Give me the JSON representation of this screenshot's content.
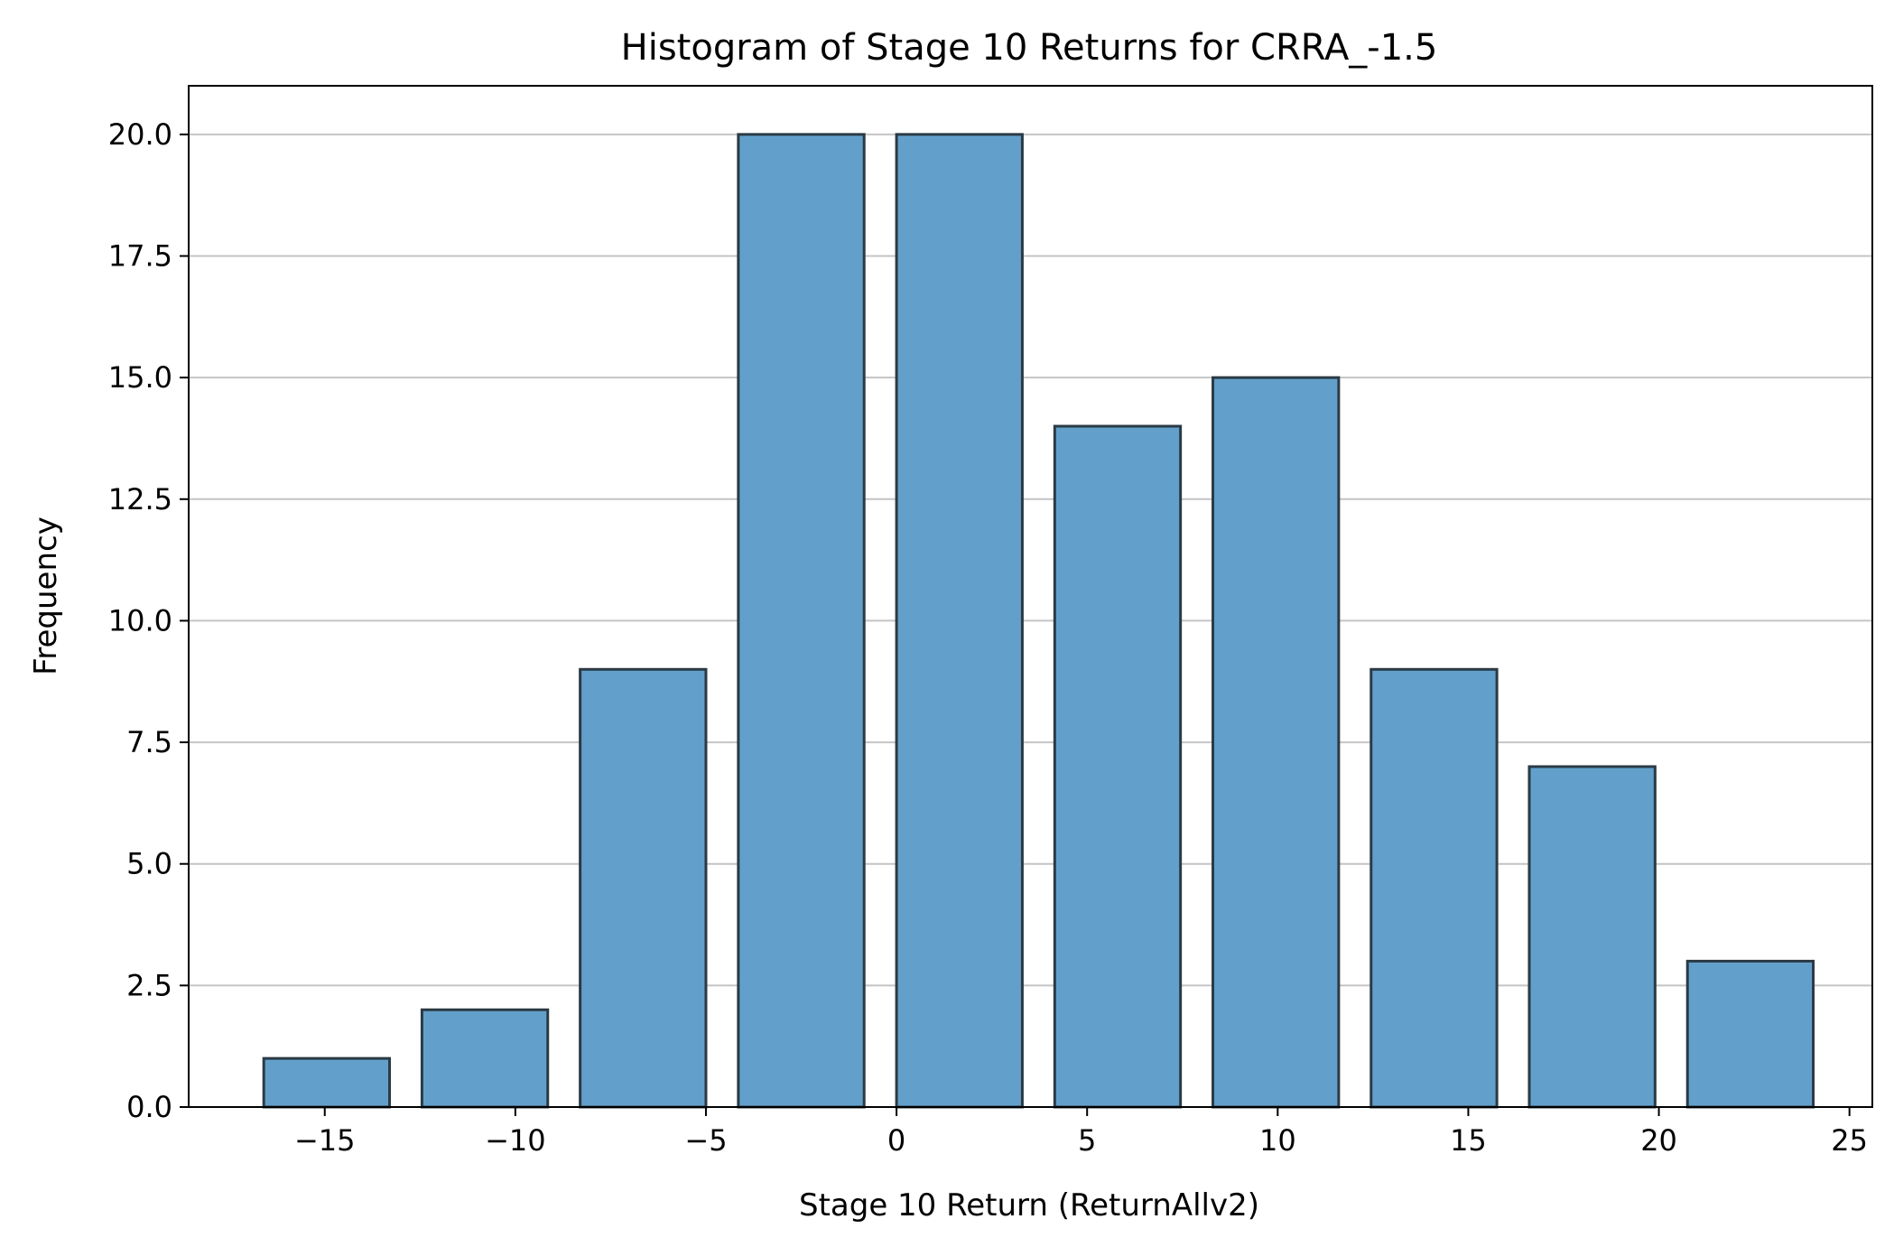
{
  "chart_data": {
    "type": "bar",
    "title": "Histogram of Stage 10 Returns for CRRA_-1.5",
    "xlabel": "Stage 10 Return (ReturnAllv2)",
    "ylabel": "Frequency",
    "xlim": [
      -18.57,
      25.6
    ],
    "ylim": [
      0,
      21
    ],
    "x_ticks": [
      -15,
      -10,
      -5,
      0,
      5,
      10,
      15,
      20,
      25
    ],
    "x_tick_labels": [
      "−15",
      "−10",
      "−5",
      "0",
      "5",
      "10",
      "15",
      "20",
      "25"
    ],
    "y_ticks": [
      0,
      2.5,
      5,
      7.5,
      10,
      12.5,
      15,
      17.5,
      20
    ],
    "y_tick_labels": [
      "0.0",
      "2.5",
      "5.0",
      "7.5",
      "10.0",
      "12.5",
      "15.0",
      "17.5",
      "20.0"
    ],
    "grid": "y-axis",
    "bins": [
      {
        "x0": -16.6,
        "x1": -13.3,
        "value": 1
      },
      {
        "x0": -12.45,
        "x1": -9.15,
        "value": 2
      },
      {
        "x0": -8.3,
        "x1": -5.0,
        "value": 9
      },
      {
        "x0": -4.15,
        "x1": -0.85,
        "value": 20
      },
      {
        "x0": 0.0,
        "x1": 3.3,
        "value": 20
      },
      {
        "x0": 4.15,
        "x1": 7.45,
        "value": 14
      },
      {
        "x0": 8.3,
        "x1": 11.6,
        "value": 15
      },
      {
        "x0": 12.45,
        "x1": 15.75,
        "value": 9
      },
      {
        "x0": 16.6,
        "x1": 19.9,
        "value": 7
      },
      {
        "x0": 20.75,
        "x1": 24.05,
        "value": 3
      }
    ],
    "colors": {
      "bar_fill": "#62a0cb",
      "bar_edge": "#2b3a44",
      "grid": "#c4c4c4",
      "axis": "#000000"
    }
  }
}
